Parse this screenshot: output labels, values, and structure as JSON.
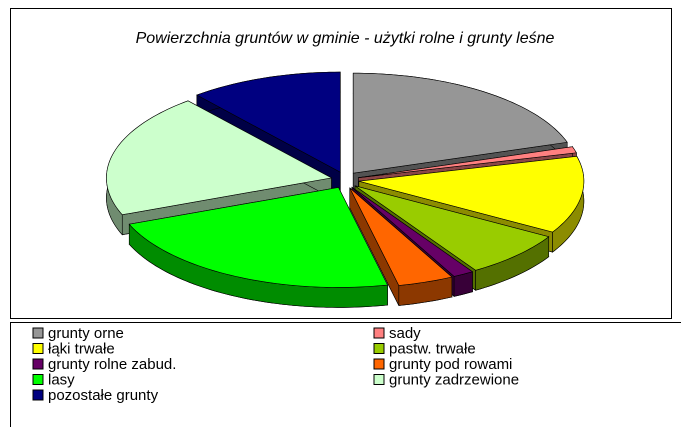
{
  "chart_data": {
    "type": "pie",
    "title": "Powierzchnia gruntów w gminie - użytki rolne i grunty leśne",
    "categories": [
      "grunty orne",
      "sady",
      "łąki trwałe",
      "pastw. trwałe",
      "grunty rolne zabud.",
      "grunty pod rowami",
      "lasy",
      "grunty zadrzewione",
      "pozostałe grunty"
    ],
    "values": [
      20,
      1,
      12.5,
      7.5,
      1.5,
      4,
      22.5,
      20,
      11
    ],
    "colors": [
      "#969696",
      "#ff8080",
      "#ffff00",
      "#99cc00",
      "#660066",
      "#ff6600",
      "#00ff00",
      "#ccffcc",
      "#000080"
    ]
  }
}
